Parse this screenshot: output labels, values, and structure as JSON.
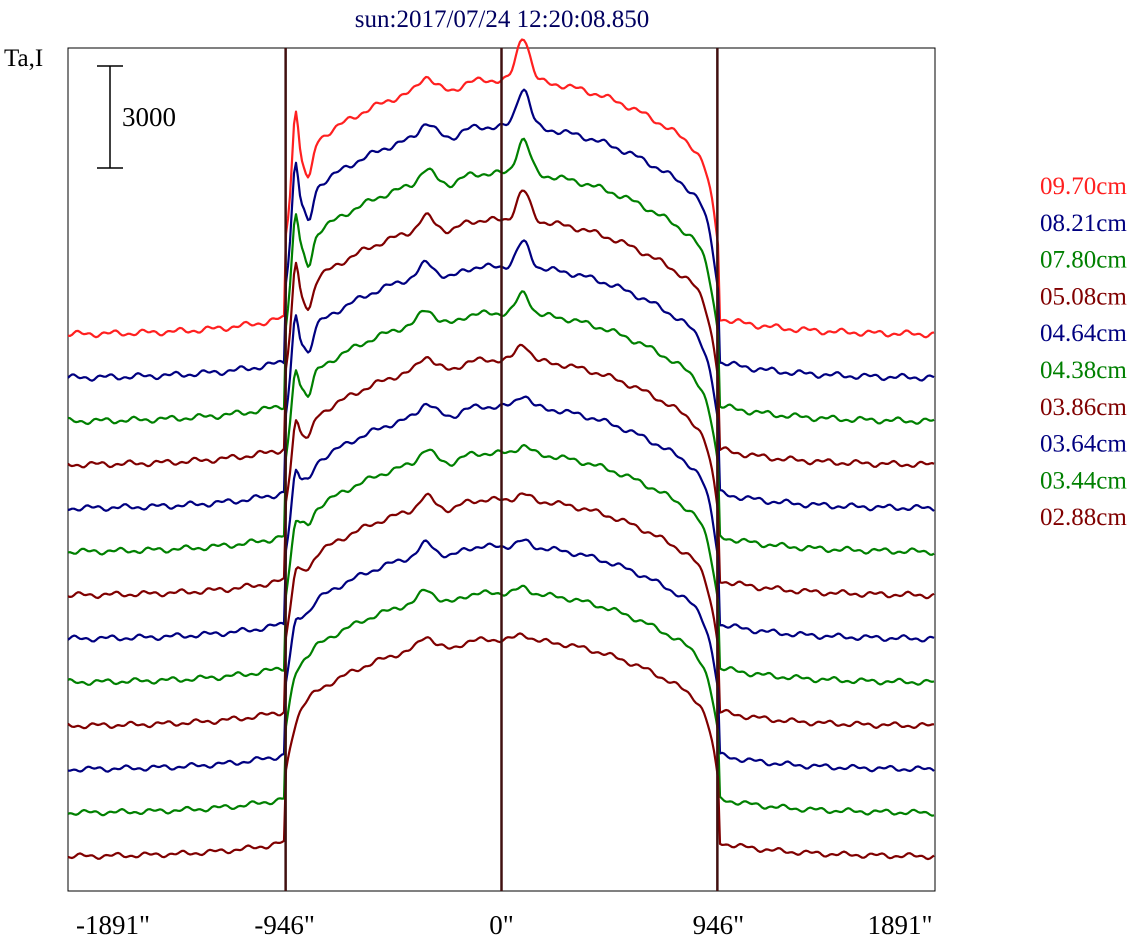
{
  "chart_data": {
    "type": "line",
    "title": "sun:2017/07/24 12:20:08.850",
    "ylabel": "Ta,I",
    "scale_bar_label": "3000",
    "x_ticks": [
      {
        "value": -1891,
        "label": "-1891\""
      },
      {
        "value": -946,
        "label": "-946\""
      },
      {
        "value": 0,
        "label": "0\""
      },
      {
        "value": 946,
        "label": "946\""
      },
      {
        "value": 1891,
        "label": "1891\""
      }
    ],
    "xlim": [
      -1891,
      1891
    ],
    "vertical_markers": [
      -946,
      0,
      946
    ],
    "legend_placement": "right",
    "legend": [
      {
        "label": "09.70cm",
        "color": "#ff2020"
      },
      {
        "label": "08.21cm",
        "color": "#000080"
      },
      {
        "label": "07.80cm",
        "color": "#008000"
      },
      {
        "label": "05.08cm",
        "color": "#800000"
      },
      {
        "label": "04.64cm",
        "color": "#000080"
      },
      {
        "label": "04.38cm",
        "color": "#008000"
      },
      {
        "label": "03.86cm",
        "color": "#800000"
      },
      {
        "label": "03.64cm",
        "color": "#000080"
      },
      {
        "label": "03.44cm",
        "color": "#008000"
      },
      {
        "label": "02.88cm",
        "color": "#800000"
      }
    ],
    "series_colors": [
      "#ff2020",
      "#000080",
      "#008000",
      "#800000",
      "#000080",
      "#008000",
      "#800000",
      "#000080",
      "#008000",
      "#800000",
      "#000080",
      "#008000",
      "#800000"
    ],
    "colors": {
      "title": "#000060",
      "marker": "#401010",
      "axis": "#000000"
    }
  }
}
